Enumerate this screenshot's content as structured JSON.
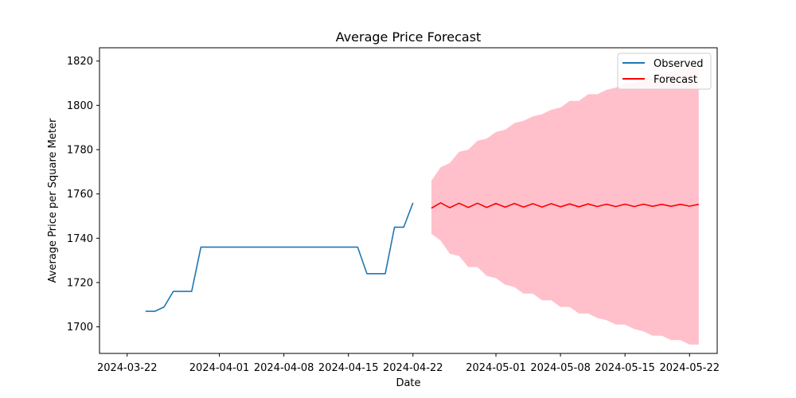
{
  "chart_data": {
    "type": "line",
    "title": "Average Price Forecast",
    "xlabel": "Date",
    "ylabel": "Average Price per Square Meter",
    "xlim": [
      "2024-03-19",
      "2024-05-25"
    ],
    "ylim": [
      1688,
      1826
    ],
    "xticks": [
      "2024-03-22",
      "2024-04-01",
      "2024-04-08",
      "2024-04-15",
      "2024-04-22",
      "2024-05-01",
      "2024-05-08",
      "2024-05-15",
      "2024-05-22"
    ],
    "yticks": [
      1700,
      1720,
      1740,
      1760,
      1780,
      1800,
      1820
    ],
    "grid": false,
    "legend_position": "top-right",
    "legend": [
      "Observed",
      "Forecast"
    ],
    "series": [
      {
        "name": "Observed",
        "color": "#1f77b4",
        "x": [
          "2024-03-24",
          "2024-03-25",
          "2024-03-26",
          "2024-03-27",
          "2024-03-28",
          "2024-03-29",
          "2024-03-30",
          "2024-03-31",
          "2024-04-01",
          "2024-04-02",
          "2024-04-03",
          "2024-04-04",
          "2024-04-05",
          "2024-04-06",
          "2024-04-07",
          "2024-04-08",
          "2024-04-09",
          "2024-04-10",
          "2024-04-11",
          "2024-04-12",
          "2024-04-13",
          "2024-04-14",
          "2024-04-15",
          "2024-04-16",
          "2024-04-17",
          "2024-04-18",
          "2024-04-19",
          "2024-04-20",
          "2024-04-21",
          "2024-04-22",
          "2024-04-23"
        ],
        "y": [
          1707,
          1707,
          1709,
          1716,
          1716,
          1716,
          1736,
          1736,
          1736,
          1736,
          1736,
          1736,
          1736,
          1736,
          1736,
          1736,
          1736,
          1736,
          1736,
          1736,
          1736,
          1736,
          1736,
          1736,
          1724,
          1724,
          1724,
          1745,
          1745,
          1756,
          null
        ]
      },
      {
        "name": "Forecast",
        "color": "#ff0000",
        "x": [
          "2024-04-24",
          "2024-04-25",
          "2024-04-26",
          "2024-04-27",
          "2024-04-28",
          "2024-04-29",
          "2024-04-30",
          "2024-05-01",
          "2024-05-02",
          "2024-05-03",
          "2024-05-04",
          "2024-05-05",
          "2024-05-06",
          "2024-05-07",
          "2024-05-08",
          "2024-05-09",
          "2024-05-10",
          "2024-05-11",
          "2024-05-12",
          "2024-05-13",
          "2024-05-14",
          "2024-05-15",
          "2024-05-16",
          "2024-05-17",
          "2024-05-18",
          "2024-05-19",
          "2024-05-20",
          "2024-05-21",
          "2024-05-22",
          "2024-05-23"
        ],
        "y": [
          1753.6,
          1756.0,
          1753.8,
          1755.8,
          1753.9,
          1755.8,
          1753.9,
          1755.7,
          1754.0,
          1755.7,
          1754.1,
          1755.6,
          1754.1,
          1755.6,
          1754.2,
          1755.5,
          1754.2,
          1755.5,
          1754.3,
          1755.4,
          1754.3,
          1755.4,
          1754.3,
          1755.4,
          1754.4,
          1755.3,
          1754.4,
          1755.3,
          1754.5,
          1755.3
        ]
      }
    ],
    "confidence_band": {
      "color": "#ffc0cb",
      "x": [
        "2024-04-24",
        "2024-04-25",
        "2024-04-26",
        "2024-04-27",
        "2024-04-28",
        "2024-04-29",
        "2024-04-30",
        "2024-05-01",
        "2024-05-02",
        "2024-05-03",
        "2024-05-04",
        "2024-05-05",
        "2024-05-06",
        "2024-05-07",
        "2024-05-08",
        "2024-05-09",
        "2024-05-10",
        "2024-05-11",
        "2024-05-12",
        "2024-05-13",
        "2024-05-14",
        "2024-05-15",
        "2024-05-16",
        "2024-05-17",
        "2024-05-18",
        "2024-05-19",
        "2024-05-20",
        "2024-05-21",
        "2024-05-22",
        "2024-05-23"
      ],
      "lower": [
        1742,
        1739,
        1733,
        1732,
        1727,
        1727,
        1723,
        1722,
        1719,
        1718,
        1715,
        1715,
        1712,
        1712,
        1709,
        1709,
        1706,
        1706,
        1704,
        1703,
        1701,
        1701,
        1699,
        1698,
        1696,
        1696,
        1694,
        1694,
        1692,
        1692
      ],
      "upper": [
        1766,
        1772,
        1774,
        1779,
        1780,
        1784,
        1785,
        1788,
        1789,
        1792,
        1793,
        1795,
        1796,
        1798,
        1799,
        1802,
        1802,
        1805,
        1805,
        1807,
        1808,
        1810,
        1810,
        1812,
        1813,
        1815,
        1815,
        1816,
        1817,
        1817
      ]
    }
  }
}
